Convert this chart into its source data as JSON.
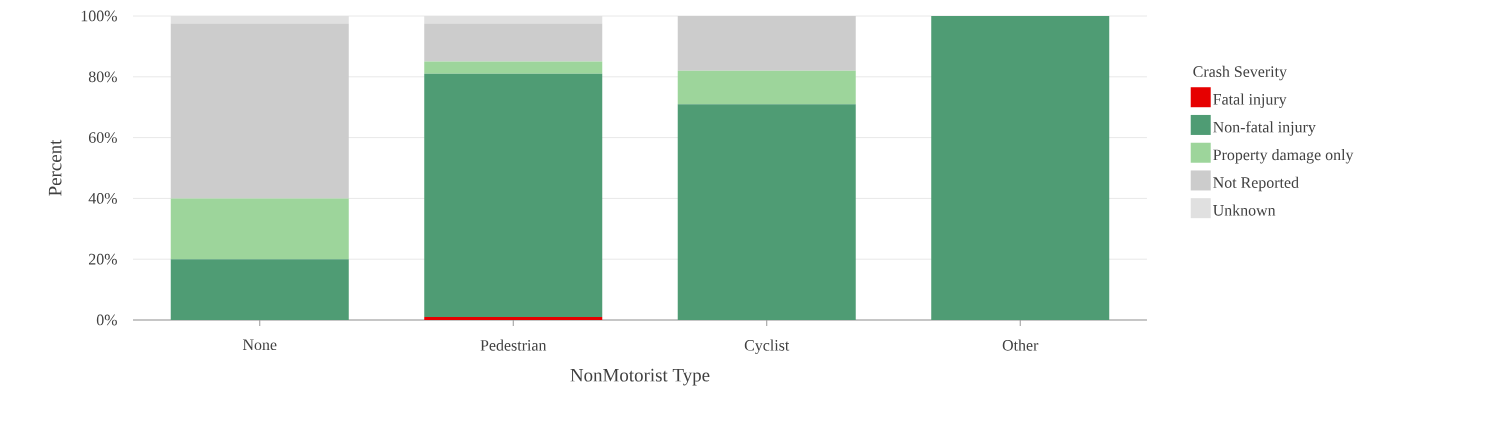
{
  "chart_data": {
    "type": "bar",
    "stacked": true,
    "xlabel": "NonMotorist Type",
    "ylabel": "Percent",
    "legend_title": "Crash Severity",
    "legend": "right",
    "grid": "y",
    "categories": [
      "None",
      "Pedestrian",
      "Cyclist",
      "Other"
    ],
    "ylim": [
      0,
      100
    ],
    "yticks": [
      {
        "value": 0,
        "label": "0%"
      },
      {
        "value": 20,
        "label": "20%"
      },
      {
        "value": 40,
        "label": "40%"
      },
      {
        "value": 60,
        "label": "60%"
      },
      {
        "value": 80,
        "label": "80%"
      },
      {
        "value": 100,
        "label": "100%"
      }
    ],
    "series": [
      {
        "name": "Fatal injury",
        "color": "#e60000",
        "values": [
          0,
          1,
          0,
          0
        ]
      },
      {
        "name": "Non-fatal injury",
        "color": "#4f9c74",
        "values": [
          20,
          80,
          71,
          100
        ]
      },
      {
        "name": "Property damage only",
        "color": "#9dd59b",
        "values": [
          20,
          4,
          11,
          0
        ]
      },
      {
        "name": "Not Reported",
        "color": "#cccccc",
        "values": [
          57.5,
          12.5,
          18,
          0
        ]
      },
      {
        "name": "Unknown",
        "color": "#e0e0e0",
        "values": [
          2.5,
          2.5,
          0,
          0
        ]
      }
    ]
  }
}
